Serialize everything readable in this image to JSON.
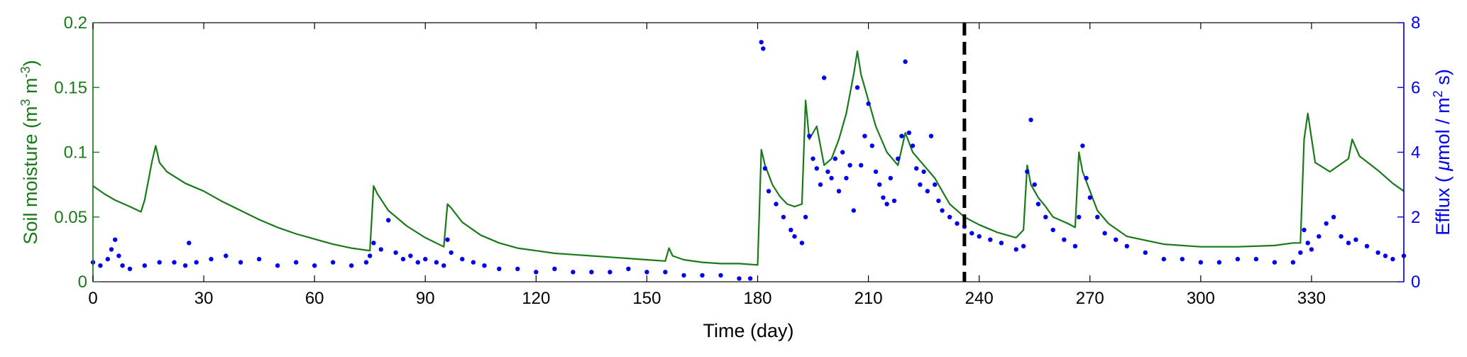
{
  "chart_data": {
    "type": "line",
    "title": "",
    "xlabel": "Time (day)",
    "ylabel_left": {
      "prefix": "Soil moisture (m",
      "sup1": "3",
      "mid": " m",
      "sup2": "-3",
      "suffix": ")"
    },
    "ylabel_right": {
      "prefix": "Efflux ( ",
      "mu": "μ",
      "mid": "mol / m",
      "sup": "2",
      "suffix": " s)"
    },
    "xlim": [
      0,
      355
    ],
    "ylim_left": [
      0,
      0.2
    ],
    "ylim_right": [
      0,
      8
    ],
    "x_ticks": [
      0,
      30,
      60,
      90,
      120,
      150,
      180,
      210,
      240,
      270,
      300,
      330
    ],
    "x_tick_labels": [
      "0",
      "30",
      "60",
      "90",
      "120",
      "150",
      "180",
      "210",
      "240",
      "270",
      "300",
      "330"
    ],
    "y_left_ticks": [
      0,
      0.05,
      0.1,
      0.15,
      0.2
    ],
    "y_left_tick_labels": [
      "0",
      "0.05",
      "0.1",
      "0.15",
      "0.2"
    ],
    "y_right_ticks": [
      0,
      2,
      4,
      6,
      8
    ],
    "y_right_tick_labels": [
      "0",
      "2",
      "4",
      "6",
      "8"
    ],
    "grid": false,
    "legend": "none",
    "colors": {
      "soil_moisture": "#1a7a1a",
      "efflux": "#0000ee",
      "marker_line": "#000000"
    },
    "vertical_marker_day": 236,
    "series": [
      {
        "axis": "left",
        "style": "line",
        "x": [
          0,
          3,
          6,
          10,
          13,
          14,
          15,
          16,
          17,
          18,
          20,
          25,
          30,
          35,
          40,
          45,
          50,
          55,
          60,
          65,
          70,
          75,
          76,
          77,
          80,
          85,
          90,
          95,
          96,
          97,
          100,
          105,
          110,
          115,
          120,
          125,
          130,
          135,
          140,
          145,
          150,
          155,
          156,
          157,
          160,
          165,
          170,
          175,
          180,
          181,
          182,
          184,
          186,
          188,
          190,
          192,
          193,
          194,
          196,
          198,
          200,
          202,
          204,
          206,
          207,
          208,
          210,
          212,
          215,
          218,
          220,
          222,
          225,
          228,
          230,
          232,
          234,
          236,
          240,
          245,
          250,
          252,
          253,
          254,
          256,
          258,
          260,
          264,
          266,
          267,
          268,
          270,
          272,
          275,
          280,
          290,
          300,
          310,
          320,
          325,
          327,
          328,
          329,
          331,
          335,
          340,
          341,
          343,
          348,
          352,
          355
        ],
        "y": [
          0.074,
          0.068,
          0.063,
          0.058,
          0.054,
          0.063,
          0.078,
          0.093,
          0.105,
          0.092,
          0.085,
          0.076,
          0.07,
          0.062,
          0.055,
          0.048,
          0.042,
          0.037,
          0.033,
          0.029,
          0.026,
          0.024,
          0.074,
          0.068,
          0.055,
          0.043,
          0.034,
          0.027,
          0.06,
          0.057,
          0.046,
          0.036,
          0.03,
          0.026,
          0.024,
          0.022,
          0.021,
          0.02,
          0.019,
          0.018,
          0.017,
          0.016,
          0.026,
          0.02,
          0.017,
          0.015,
          0.014,
          0.014,
          0.013,
          0.102,
          0.09,
          0.075,
          0.066,
          0.06,
          0.058,
          0.06,
          0.14,
          0.11,
          0.12,
          0.09,
          0.095,
          0.11,
          0.13,
          0.16,
          0.178,
          0.16,
          0.14,
          0.12,
          0.1,
          0.09,
          0.115,
          0.1,
          0.09,
          0.08,
          0.07,
          0.06,
          0.055,
          0.05,
          0.044,
          0.038,
          0.034,
          0.04,
          0.09,
          0.075,
          0.065,
          0.058,
          0.05,
          0.045,
          0.042,
          0.1,
          0.085,
          0.07,
          0.055,
          0.045,
          0.035,
          0.029,
          0.027,
          0.027,
          0.028,
          0.03,
          0.03,
          0.11,
          0.13,
          0.092,
          0.085,
          0.095,
          0.11,
          0.097,
          0.086,
          0.076,
          0.07
        ]
      },
      {
        "axis": "right",
        "style": "scatter",
        "x": [
          0,
          2,
          4,
          5,
          6,
          7,
          8,
          10,
          14,
          18,
          22,
          25,
          26,
          28,
          32,
          36,
          40,
          45,
          50,
          55,
          60,
          65,
          70,
          74,
          75,
          76,
          78,
          80,
          82,
          84,
          86,
          88,
          90,
          93,
          95,
          96,
          97,
          100,
          103,
          106,
          110,
          115,
          120,
          125,
          130,
          135,
          140,
          145,
          150,
          155,
          160,
          165,
          170,
          175,
          178,
          181,
          181.5,
          182,
          183,
          185,
          187,
          189,
          190,
          192,
          193,
          194,
          195,
          196,
          197,
          198,
          199,
          200,
          201,
          202,
          203,
          204,
          205,
          206,
          207,
          208,
          209,
          210,
          211,
          212,
          213,
          214,
          215,
          216,
          217,
          218,
          219,
          220,
          221,
          222,
          223,
          224,
          225,
          226,
          227,
          228,
          229,
          230,
          232,
          234,
          236,
          238,
          240,
          243,
          246,
          250,
          252,
          253,
          254,
          255,
          256,
          258,
          260,
          263,
          266,
          267,
          268,
          269,
          270,
          272,
          274,
          277,
          280,
          285,
          290,
          295,
          300,
          305,
          310,
          315,
          320,
          325,
          327,
          328,
          329,
          330,
          332,
          334,
          336,
          338,
          340,
          342,
          345,
          348,
          350,
          352,
          355
        ],
        "y": [
          0.6,
          0.5,
          0.7,
          1.0,
          1.3,
          0.8,
          0.5,
          0.4,
          0.5,
          0.6,
          0.6,
          0.5,
          1.2,
          0.6,
          0.7,
          0.8,
          0.6,
          0.7,
          0.5,
          0.6,
          0.5,
          0.6,
          0.5,
          0.6,
          0.8,
          1.2,
          1.0,
          1.9,
          0.9,
          0.7,
          0.8,
          0.6,
          0.7,
          0.6,
          0.5,
          1.3,
          0.9,
          0.7,
          0.6,
          0.5,
          0.4,
          0.4,
          0.3,
          0.4,
          0.3,
          0.3,
          0.3,
          0.4,
          0.3,
          0.3,
          0.2,
          0.2,
          0.2,
          0.1,
          0.1,
          7.4,
          7.2,
          3.5,
          2.8,
          2.4,
          2.0,
          1.6,
          1.4,
          1.2,
          2.0,
          4.5,
          3.8,
          3.5,
          3.0,
          6.3,
          3.4,
          3.2,
          3.8,
          2.8,
          4.0,
          3.2,
          3.6,
          2.2,
          6.0,
          3.6,
          4.5,
          5.5,
          4.2,
          3.4,
          3.0,
          2.6,
          2.4,
          3.2,
          2.5,
          3.8,
          4.5,
          6.8,
          4.6,
          4.2,
          3.5,
          3.0,
          3.4,
          2.8,
          4.5,
          3.0,
          2.5,
          2.2,
          2.0,
          1.8,
          1.7,
          1.5,
          1.4,
          1.3,
          1.2,
          1.0,
          1.1,
          3.4,
          5.0,
          3.0,
          2.4,
          2.0,
          1.6,
          1.3,
          1.1,
          2.0,
          4.2,
          3.2,
          2.6,
          2.0,
          1.5,
          1.3,
          1.1,
          0.9,
          0.7,
          0.7,
          0.6,
          0.6,
          0.7,
          0.7,
          0.6,
          0.6,
          0.9,
          1.6,
          1.2,
          1.0,
          1.4,
          1.8,
          2.0,
          1.4,
          1.2,
          1.3,
          1.1,
          0.9,
          0.8,
          0.7,
          0.8
        ]
      }
    ]
  }
}
